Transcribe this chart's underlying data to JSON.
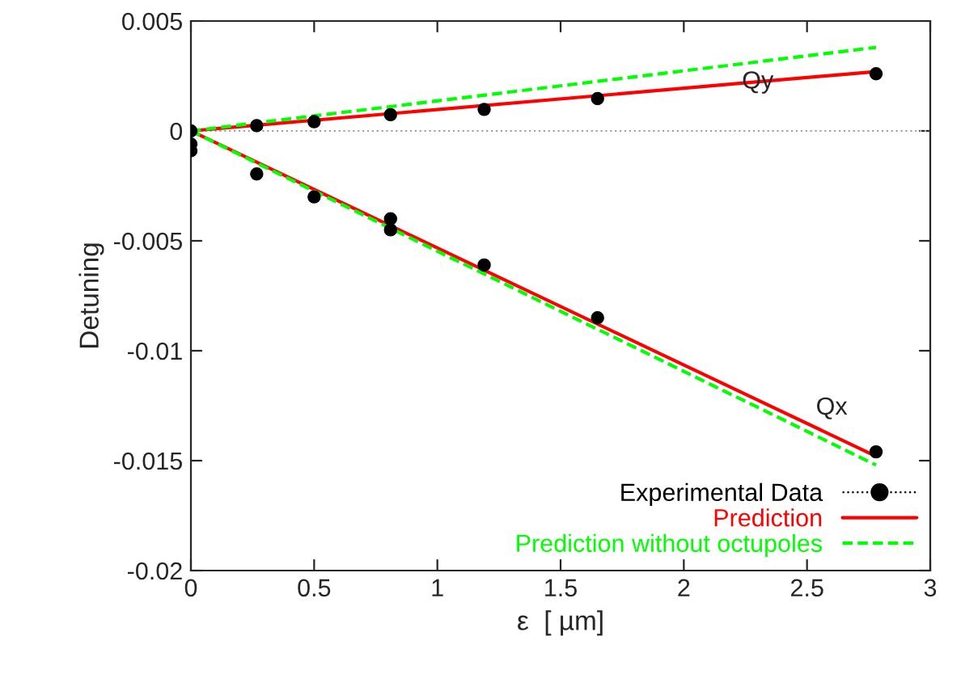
{
  "chart_data": {
    "type": "scatter",
    "xlabel": "ε  [ µm]",
    "ylabel": "Detuning",
    "xlim": [
      0,
      3
    ],
    "ylim": [
      -0.02,
      0.005
    ],
    "xticks": [
      0,
      0.5,
      1,
      1.5,
      2,
      2.5,
      3
    ],
    "yticks": [
      -0.02,
      -0.015,
      -0.01,
      -0.005,
      0,
      0.005
    ],
    "grid": false,
    "legend": "bottom right",
    "ref_lines": [
      {
        "axis": "y",
        "value": 0,
        "color": "#a0a0a0",
        "line_style": "dotted"
      }
    ],
    "annotations": [
      {
        "text": "Qy",
        "x": 2.3,
        "y": 0.00314
      },
      {
        "text": "Qx",
        "x": 2.6,
        "y": -0.01384
      }
    ],
    "series": [
      {
        "name": "Experimental Data",
        "color": "#000000",
        "marker": "circle",
        "x": [
          0,
          0,
          0,
          0.267,
          0.5,
          0.81,
          1.19,
          1.65,
          2.78,
          0.267,
          0.5,
          0.81,
          0.81,
          1.19,
          1.65,
          2.78
        ],
        "values": [
          0,
          -0.0006,
          -0.0009,
          0.00024,
          0.00042,
          0.00074,
          0.00098,
          0.00147,
          0.0026,
          -0.00196,
          -0.003,
          -0.004,
          -0.0045,
          -0.0061,
          -0.0085,
          -0.0146
        ]
      },
      {
        "name": "Prediction",
        "type": "line",
        "color": "#ff0000",
        "line_style": "solid",
        "x": [
          0,
          2.78
        ],
        "values": [
          0,
          0.0027
        ]
      },
      {
        "type": "line",
        "color": "#ff0000",
        "line_style": "solid",
        "x": [
          0,
          2.78
        ],
        "values": [
          0,
          -0.0148
        ]
      },
      {
        "name": "Prediction without octupoles",
        "type": "line",
        "color": "#00ff00",
        "line_style": "dashed",
        "x": [
          0,
          2.78
        ],
        "values": [
          0,
          0.0038
        ]
      },
      {
        "type": "line",
        "color": "#00ff00",
        "line_style": "dashed",
        "x": [
          0,
          2.78
        ],
        "values": [
          0,
          -0.0152
        ]
      }
    ]
  }
}
